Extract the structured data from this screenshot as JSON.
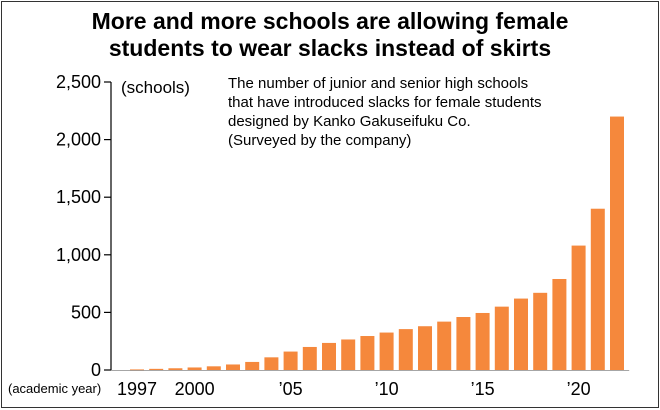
{
  "chart_data": {
    "type": "bar",
    "title": "More and more schools are allowing female\nstudents to wear slacks instead of skirts",
    "note": "The number of junior and senior high schools\nthat have introduced slacks for female students\ndesigned by Kanko Gakuseifuku Co.\n(Surveyed by the company)",
    "ylabel": "(schools)",
    "xlabel": "(academic year)",
    "ylim": [
      0,
      2500
    ],
    "yticks": [
      0,
      500,
      1000,
      1500,
      2000,
      2500
    ],
    "ytick_labels": [
      "0",
      "500",
      "1,000",
      "1,500",
      "2,000",
      "2,500"
    ],
    "categories": [
      "1997",
      "1998",
      "1999",
      "2000",
      "2001",
      "2002",
      "2003",
      "2004",
      "2005",
      "2006",
      "2007",
      "2008",
      "2009",
      "2010",
      "2011",
      "2012",
      "2013",
      "2014",
      "2015",
      "2016",
      "2017",
      "2018",
      "2019",
      "2020",
      "2021",
      "2022"
    ],
    "xtick_labels": [
      {
        "category": "1997",
        "label": "1997"
      },
      {
        "category": "2000",
        "label": "2000"
      },
      {
        "category": "2005",
        "label": "’0 5"
      },
      {
        "category": "2010",
        "label": "’10"
      },
      {
        "category": "2015",
        "label": "’15"
      },
      {
        "category": "2020",
        "label": "’20"
      }
    ],
    "values": [
      5,
      10,
      15,
      22,
      32,
      48,
      70,
      110,
      160,
      200,
      235,
      265,
      295,
      325,
      355,
      380,
      420,
      460,
      495,
      550,
      620,
      670,
      790,
      1080,
      1400,
      2200
    ],
    "bar_color": "#f5883c",
    "grid": false,
    "legend": "none"
  }
}
